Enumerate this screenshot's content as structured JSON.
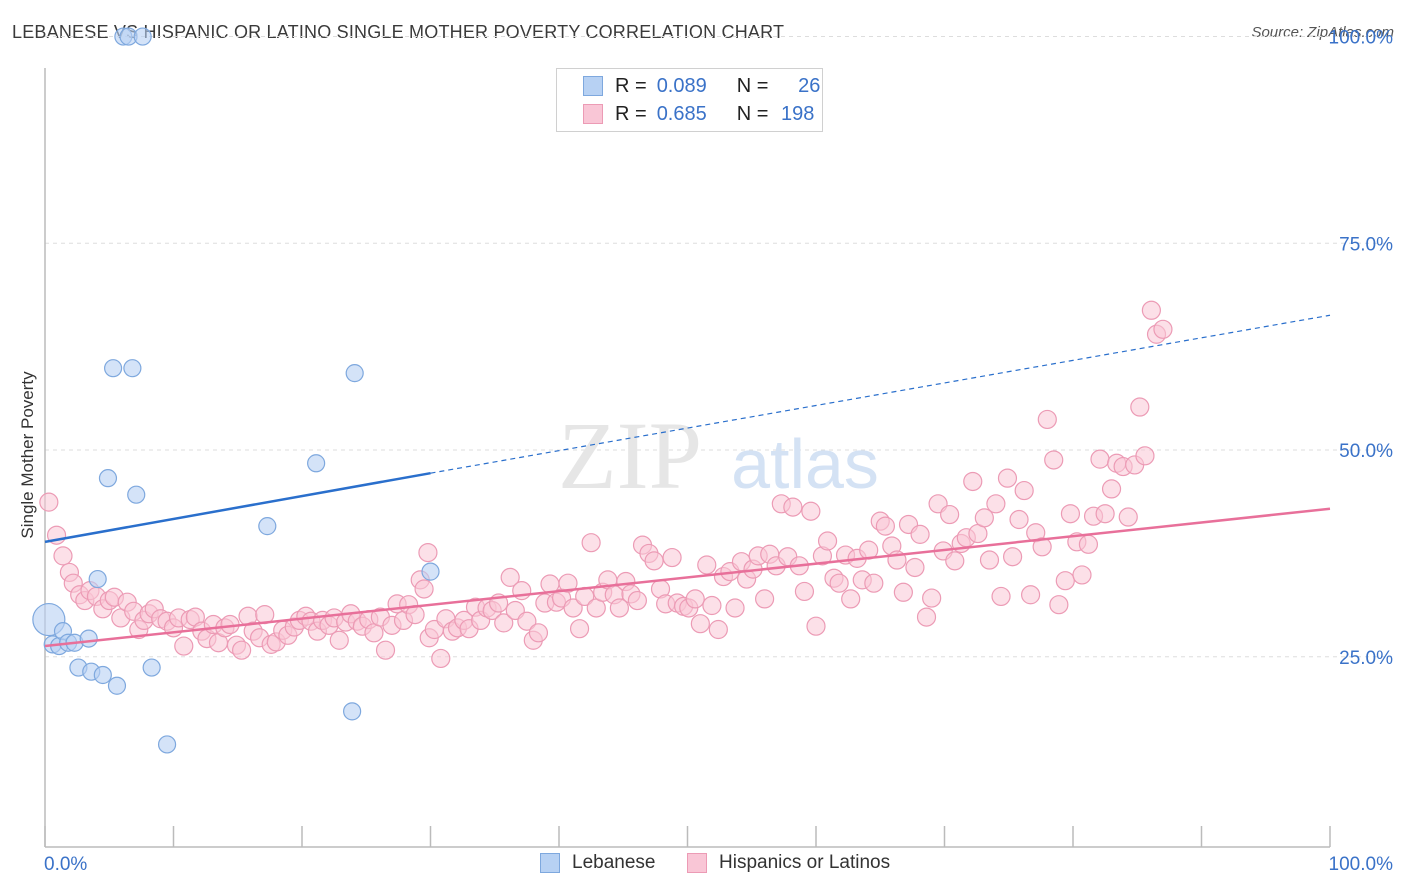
{
  "title": "LEBANESE VS HISPANIC OR LATINO SINGLE MOTHER POVERTY CORRELATION CHART",
  "source": "Source: ZipAtlas.com",
  "watermark": {
    "zip": "ZIP",
    "atlas": "atlas"
  },
  "colors": {
    "blue_fill": "#b7d1f3",
    "blue_stroke": "#7ea8de",
    "blue_line": "#2a6fcc",
    "pink_fill": "#f9c6d6",
    "pink_stroke": "#ec9bb5",
    "pink_line": "#e8709a",
    "tick_label": "#3a72c8",
    "grid": "#dddddd"
  },
  "legend": {
    "rows": [
      {
        "r_label": "R =",
        "r_value": "0.089",
        "n_label": "N =",
        "n_value": "26"
      },
      {
        "r_label": "R =",
        "r_value": "0.685",
        "n_label": "N =",
        "n_value": "198"
      }
    ]
  },
  "bottom_legend": {
    "lebanese": "Lebanese",
    "hispanic": "Hispanics or Latinos"
  },
  "chart_data": {
    "type": "scatter",
    "title": "LEBANESE VS HISPANIC OR LATINO SINGLE MOTHER POVERTY CORRELATION CHART",
    "xlabel": "",
    "ylabel": "Single Mother Poverty",
    "x_tick_labels": [
      "0.0%",
      "100.0%"
    ],
    "y_tick_labels": [
      "25.0%",
      "50.0%",
      "75.0%",
      "100.0%"
    ],
    "y_ticks": [
      25,
      50,
      75,
      100
    ],
    "xlim": [
      0,
      100
    ],
    "ylim": [
      2,
      102
    ],
    "grid": true,
    "legend_position": "top-center",
    "series": [
      {
        "name": "Lebanese",
        "R": 0.089,
        "N": 26,
        "trend": {
          "x0": 0,
          "y0": 38.9,
          "x1": 30,
          "y1": 47.2,
          "dashed_to_x": 100,
          "dashed_to_y": 66.3
        },
        "points": [
          [
            0.3,
            29.5
          ],
          [
            0.6,
            26.5
          ],
          [
            1.1,
            26.3
          ],
          [
            1.4,
            28.1
          ],
          [
            1.8,
            26.7
          ],
          [
            2.3,
            26.7
          ],
          [
            2.6,
            23.7
          ],
          [
            3.4,
            27.2
          ],
          [
            3.6,
            23.2
          ],
          [
            4.1,
            34.4
          ],
          [
            4.5,
            22.8
          ],
          [
            4.9,
            46.6
          ],
          [
            5.3,
            59.9
          ],
          [
            5.6,
            21.5
          ],
          [
            6.1,
            100
          ],
          [
            6.5,
            100
          ],
          [
            6.8,
            59.9
          ],
          [
            7.1,
            44.6
          ],
          [
            7.6,
            100
          ],
          [
            8.3,
            23.7
          ],
          [
            9.5,
            14.4
          ],
          [
            17.3,
            40.8
          ],
          [
            21.1,
            48.4
          ],
          [
            23.9,
            18.4
          ],
          [
            24.1,
            59.3
          ],
          [
            30.0,
            35.3
          ]
        ]
      },
      {
        "name": "Hispanics or Latinos",
        "R": 0.685,
        "N": 198,
        "trend": {
          "x0": 0,
          "y0": 26.3,
          "x1": 100,
          "y1": 42.9
        },
        "points": [
          [
            0.3,
            43.7
          ],
          [
            0.9,
            39.7
          ],
          [
            1.4,
            37.2
          ],
          [
            1.9,
            35.2
          ],
          [
            2.2,
            33.9
          ],
          [
            2.7,
            32.5
          ],
          [
            3.1,
            31.8
          ],
          [
            3.5,
            33.0
          ],
          [
            4.0,
            32.3
          ],
          [
            4.5,
            30.8
          ],
          [
            5.0,
            31.8
          ],
          [
            5.4,
            32.2
          ],
          [
            5.9,
            29.7
          ],
          [
            6.4,
            31.6
          ],
          [
            6.9,
            30.5
          ],
          [
            7.3,
            28.3
          ],
          [
            7.7,
            29.4
          ],
          [
            8.1,
            30.2
          ],
          [
            8.5,
            30.8
          ],
          [
            9.0,
            29.6
          ],
          [
            9.5,
            29.3
          ],
          [
            10.0,
            28.5
          ],
          [
            10.4,
            29.7
          ],
          [
            10.8,
            26.3
          ],
          [
            11.3,
            29.5
          ],
          [
            11.7,
            29.8
          ],
          [
            12.2,
            28.1
          ],
          [
            12.6,
            27.2
          ],
          [
            13.1,
            28.9
          ],
          [
            13.5,
            26.7
          ],
          [
            14.0,
            28.5
          ],
          [
            14.4,
            28.9
          ],
          [
            14.9,
            26.4
          ],
          [
            15.3,
            25.8
          ],
          [
            15.8,
            29.9
          ],
          [
            16.2,
            28.1
          ],
          [
            16.7,
            27.3
          ],
          [
            17.1,
            30.1
          ],
          [
            17.6,
            26.5
          ],
          [
            18.0,
            26.8
          ],
          [
            18.5,
            28.2
          ],
          [
            18.9,
            27.6
          ],
          [
            19.4,
            28.6
          ],
          [
            19.8,
            29.4
          ],
          [
            20.3,
            29.9
          ],
          [
            20.7,
            29.3
          ],
          [
            21.2,
            28.1
          ],
          [
            21.6,
            29.4
          ],
          [
            22.1,
            28.8
          ],
          [
            22.5,
            29.7
          ],
          [
            22.9,
            27.0
          ],
          [
            23.4,
            29.2
          ],
          [
            23.8,
            30.2
          ],
          [
            24.3,
            29.3
          ],
          [
            24.7,
            28.7
          ],
          [
            25.2,
            29.5
          ],
          [
            25.6,
            27.9
          ],
          [
            26.1,
            29.8
          ],
          [
            26.5,
            25.8
          ],
          [
            27.0,
            28.8
          ],
          [
            27.4,
            31.4
          ],
          [
            27.9,
            29.4
          ],
          [
            28.3,
            31.3
          ],
          [
            28.8,
            30.1
          ],
          [
            29.2,
            34.3
          ],
          [
            29.5,
            33.2
          ],
          [
            29.9,
            27.3
          ],
          [
            30.3,
            28.3
          ],
          [
            30.8,
            24.8
          ],
          [
            31.2,
            29.6
          ],
          [
            31.7,
            28.1
          ],
          [
            32.1,
            28.5
          ],
          [
            32.6,
            29.4
          ],
          [
            33.0,
            28.4
          ],
          [
            33.5,
            31.0
          ],
          [
            33.9,
            29.4
          ],
          [
            34.4,
            30.9
          ],
          [
            34.8,
            30.6
          ],
          [
            35.3,
            31.5
          ],
          [
            35.7,
            29.1
          ],
          [
            36.2,
            34.6
          ],
          [
            36.6,
            30.6
          ],
          [
            37.1,
            33.0
          ],
          [
            37.5,
            29.3
          ],
          [
            38.0,
            27.0
          ],
          [
            38.4,
            27.9
          ],
          [
            38.9,
            31.5
          ],
          [
            39.3,
            33.8
          ],
          [
            39.8,
            31.6
          ],
          [
            40.2,
            32.1
          ],
          [
            40.7,
            33.9
          ],
          [
            41.1,
            30.9
          ],
          [
            41.6,
            28.4
          ],
          [
            42.0,
            32.3
          ],
          [
            42.5,
            38.8
          ],
          [
            42.9,
            30.9
          ],
          [
            43.4,
            32.8
          ],
          [
            43.8,
            34.3
          ],
          [
            44.3,
            32.5
          ],
          [
            44.7,
            30.9
          ],
          [
            45.2,
            34.1
          ],
          [
            45.6,
            32.6
          ],
          [
            46.1,
            31.8
          ],
          [
            46.5,
            38.5
          ],
          [
            47.0,
            37.5
          ],
          [
            47.4,
            36.6
          ],
          [
            47.9,
            33.2
          ],
          [
            48.3,
            31.4
          ],
          [
            48.8,
            37.0
          ],
          [
            49.2,
            31.5
          ],
          [
            49.7,
            31.1
          ],
          [
            50.1,
            30.9
          ],
          [
            50.6,
            32.0
          ],
          [
            51.0,
            29.0
          ],
          [
            51.5,
            36.1
          ],
          [
            51.9,
            31.2
          ],
          [
            52.4,
            28.3
          ],
          [
            52.8,
            34.7
          ],
          [
            53.3,
            35.3
          ],
          [
            53.7,
            30.9
          ],
          [
            54.2,
            36.5
          ],
          [
            54.6,
            34.4
          ],
          [
            55.1,
            35.6
          ],
          [
            55.5,
            37.2
          ],
          [
            56.0,
            32.0
          ],
          [
            56.4,
            37.4
          ],
          [
            56.9,
            36.0
          ],
          [
            57.3,
            43.5
          ],
          [
            57.8,
            37.1
          ],
          [
            58.2,
            43.1
          ],
          [
            58.7,
            36.0
          ],
          [
            59.1,
            32.9
          ],
          [
            59.6,
            42.6
          ],
          [
            60.0,
            28.7
          ],
          [
            60.5,
            37.2
          ],
          [
            60.9,
            39.0
          ],
          [
            61.4,
            34.5
          ],
          [
            61.8,
            33.9
          ],
          [
            62.3,
            37.3
          ],
          [
            62.7,
            32.0
          ],
          [
            63.2,
            36.9
          ],
          [
            63.6,
            34.3
          ],
          [
            64.1,
            37.9
          ],
          [
            64.5,
            33.9
          ],
          [
            65.0,
            41.4
          ],
          [
            65.4,
            40.8
          ],
          [
            65.9,
            38.4
          ],
          [
            66.3,
            36.7
          ],
          [
            66.8,
            32.8
          ],
          [
            67.2,
            41.0
          ],
          [
            67.7,
            35.8
          ],
          [
            68.1,
            39.8
          ],
          [
            68.6,
            29.8
          ],
          [
            69.0,
            32.1
          ],
          [
            69.5,
            43.5
          ],
          [
            69.9,
            37.8
          ],
          [
            70.4,
            42.2
          ],
          [
            70.8,
            36.6
          ],
          [
            71.3,
            38.7
          ],
          [
            71.7,
            39.4
          ],
          [
            72.2,
            46.2
          ],
          [
            72.6,
            39.9
          ],
          [
            73.1,
            41.8
          ],
          [
            73.5,
            36.7
          ],
          [
            74.0,
            43.5
          ],
          [
            74.4,
            32.3
          ],
          [
            74.9,
            46.6
          ],
          [
            75.3,
            37.1
          ],
          [
            75.8,
            41.6
          ],
          [
            76.2,
            45.1
          ],
          [
            76.7,
            32.5
          ],
          [
            77.1,
            40.0
          ],
          [
            77.6,
            38.3
          ],
          [
            78.0,
            53.7
          ],
          [
            78.5,
            48.8
          ],
          [
            78.9,
            31.3
          ],
          [
            79.4,
            34.2
          ],
          [
            79.8,
            42.3
          ],
          [
            80.3,
            38.9
          ],
          [
            80.7,
            34.9
          ],
          [
            81.2,
            38.6
          ],
          [
            81.6,
            42.0
          ],
          [
            82.1,
            48.9
          ],
          [
            82.5,
            42.3
          ],
          [
            83.0,
            45.3
          ],
          [
            83.4,
            48.4
          ],
          [
            83.9,
            48.0
          ],
          [
            84.3,
            41.9
          ],
          [
            84.8,
            48.2
          ],
          [
            85.2,
            55.2
          ],
          [
            85.6,
            49.3
          ],
          [
            86.1,
            66.9
          ],
          [
            86.5,
            64.0
          ],
          [
            87.0,
            64.6
          ],
          [
            29.8,
            37.6
          ]
        ]
      }
    ]
  }
}
